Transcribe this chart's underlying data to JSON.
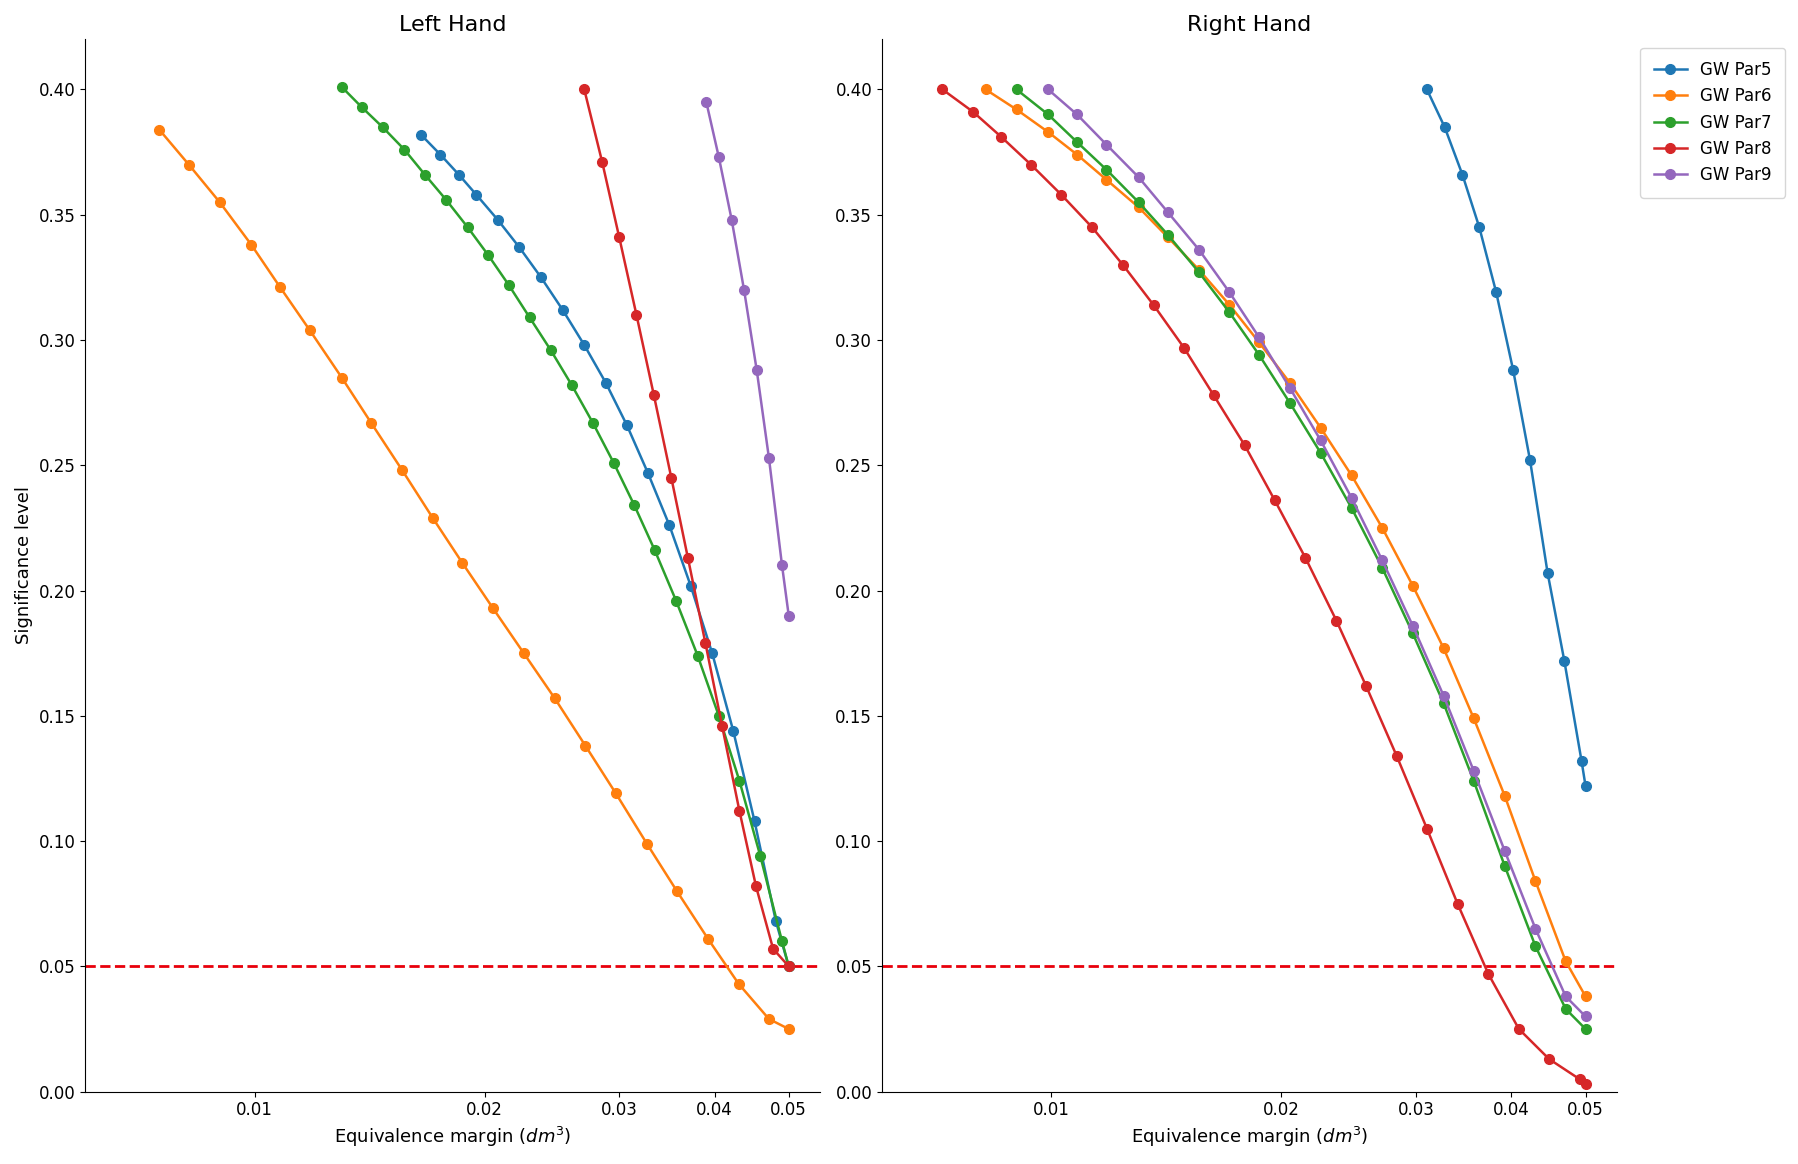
{
  "title_left": "Left Hand",
  "title_right": "Right Hand",
  "xlabel": "Equivalence margin ($dm^3$)",
  "ylabel": "Significance level",
  "ylim": [
    0.0,
    0.42
  ],
  "yticks": [
    0.0,
    0.05,
    0.1,
    0.15,
    0.2,
    0.25,
    0.3,
    0.35,
    0.4
  ],
  "hline_y": 0.05,
  "hline_color": "#e8000b",
  "series_labels": [
    "GW Par5",
    "GW Par6",
    "GW Par7",
    "GW Par8",
    "GW Par9"
  ],
  "series_colors": [
    "#1f77b4",
    "#ff7f0e",
    "#2ca02c",
    "#d62728",
    "#9467bd"
  ],
  "marker_size": 7,
  "linewidth": 1.8,
  "title_fontsize": 16,
  "label_fontsize": 13,
  "tick_fontsize": 12,
  "legend_fontsize": 12,
  "background_color": "#ffffff",
  "left_hand": {
    "GW_Par5": {
      "x": [
        0.0165,
        0.0175,
        0.0185,
        0.0195,
        0.0208,
        0.0222,
        0.0237,
        0.0253,
        0.027,
        0.0288,
        0.0307,
        0.0327,
        0.0349,
        0.0372,
        0.0397,
        0.0423,
        0.0451,
        0.0481,
        0.05
      ],
      "y": [
        0.382,
        0.374,
        0.366,
        0.358,
        0.348,
        0.337,
        0.325,
        0.312,
        0.298,
        0.283,
        0.266,
        0.247,
        0.226,
        0.202,
        0.175,
        0.144,
        0.108,
        0.068,
        0.05
      ]
    },
    "GW_Par6": {
      "x": [
        0.0075,
        0.0082,
        0.009,
        0.0099,
        0.0108,
        0.0118,
        0.013,
        0.0142,
        0.0156,
        0.0171,
        0.0187,
        0.0205,
        0.0225,
        0.0247,
        0.0271,
        0.0297,
        0.0326,
        0.0357,
        0.0392,
        0.043,
        0.0471,
        0.05
      ],
      "y": [
        0.384,
        0.37,
        0.355,
        0.338,
        0.321,
        0.304,
        0.285,
        0.267,
        0.248,
        0.229,
        0.211,
        0.193,
        0.175,
        0.157,
        0.138,
        0.119,
        0.099,
        0.08,
        0.061,
        0.043,
        0.029,
        0.025
      ]
    },
    "GW_Par7": {
      "x": [
        0.013,
        0.0138,
        0.0147,
        0.0157,
        0.0167,
        0.0178,
        0.019,
        0.0202,
        0.0215,
        0.0229,
        0.0244,
        0.026,
        0.0277,
        0.0295,
        0.0314,
        0.0334,
        0.0356,
        0.038,
        0.0405,
        0.0431,
        0.0459,
        0.049,
        0.05
      ],
      "y": [
        0.401,
        0.393,
        0.385,
        0.376,
        0.366,
        0.356,
        0.345,
        0.334,
        0.322,
        0.309,
        0.296,
        0.282,
        0.267,
        0.251,
        0.234,
        0.216,
        0.196,
        0.174,
        0.15,
        0.124,
        0.094,
        0.06,
        0.05
      ]
    },
    "GW_Par8": {
      "x": [
        0.027,
        0.0285,
        0.03,
        0.0316,
        0.0333,
        0.0351,
        0.0369,
        0.0389,
        0.0409,
        0.0431,
        0.0453,
        0.0477,
        0.05
      ],
      "y": [
        0.4,
        0.371,
        0.341,
        0.31,
        0.278,
        0.245,
        0.213,
        0.179,
        0.146,
        0.112,
        0.082,
        0.057,
        0.05
      ]
    },
    "GW_Par9": {
      "x": [
        0.039,
        0.0405,
        0.0421,
        0.0437,
        0.0454,
        0.0471,
        0.049,
        0.05
      ],
      "y": [
        0.395,
        0.373,
        0.348,
        0.32,
        0.288,
        0.253,
        0.21,
        0.19
      ]
    }
  },
  "right_hand": {
    "GW_Par5": {
      "x": [
        0.031,
        0.0327,
        0.0345,
        0.0363,
        0.0382,
        0.0402,
        0.0423,
        0.0446,
        0.0469,
        0.0494,
        0.05
      ],
      "y": [
        0.4,
        0.385,
        0.366,
        0.345,
        0.319,
        0.288,
        0.252,
        0.207,
        0.172,
        0.132,
        0.122
      ]
    },
    "GW_Par6": {
      "x": [
        0.0082,
        0.009,
        0.0099,
        0.0108,
        0.0118,
        0.013,
        0.0142,
        0.0156,
        0.0171,
        0.0187,
        0.0205,
        0.0225,
        0.0247,
        0.0271,
        0.0297,
        0.0326,
        0.0357,
        0.0392,
        0.043,
        0.0471,
        0.05
      ],
      "y": [
        0.4,
        0.392,
        0.383,
        0.374,
        0.364,
        0.353,
        0.341,
        0.328,
        0.314,
        0.299,
        0.283,
        0.265,
        0.246,
        0.225,
        0.202,
        0.177,
        0.149,
        0.118,
        0.084,
        0.052,
        0.038
      ]
    },
    "GW_Par7": {
      "x": [
        0.009,
        0.0099,
        0.0108,
        0.0118,
        0.013,
        0.0142,
        0.0156,
        0.0171,
        0.0187,
        0.0205,
        0.0225,
        0.0247,
        0.0271,
        0.0297,
        0.0326,
        0.0357,
        0.0392,
        0.043,
        0.0471,
        0.05
      ],
      "y": [
        0.4,
        0.39,
        0.379,
        0.368,
        0.355,
        0.342,
        0.327,
        0.311,
        0.294,
        0.275,
        0.255,
        0.233,
        0.209,
        0.183,
        0.155,
        0.124,
        0.09,
        0.058,
        0.033,
        0.025
      ]
    },
    "GW_Par8": {
      "x": [
        0.0072,
        0.0079,
        0.0086,
        0.0094,
        0.0103,
        0.0113,
        0.0124,
        0.0136,
        0.0149,
        0.0163,
        0.0179,
        0.0196,
        0.0215,
        0.0236,
        0.0258,
        0.0283,
        0.031,
        0.034,
        0.0373,
        0.0409,
        0.0448,
        0.0491,
        0.05
      ],
      "y": [
        0.4,
        0.391,
        0.381,
        0.37,
        0.358,
        0.345,
        0.33,
        0.314,
        0.297,
        0.278,
        0.258,
        0.236,
        0.213,
        0.188,
        0.162,
        0.134,
        0.105,
        0.075,
        0.047,
        0.025,
        0.013,
        0.005,
        0.003
      ]
    },
    "GW_Par9": {
      "x": [
        0.0099,
        0.0108,
        0.0118,
        0.013,
        0.0142,
        0.0156,
        0.0171,
        0.0187,
        0.0205,
        0.0225,
        0.0247,
        0.0271,
        0.0297,
        0.0326,
        0.0357,
        0.0392,
        0.043,
        0.0471,
        0.05
      ],
      "y": [
        0.4,
        0.39,
        0.378,
        0.365,
        0.351,
        0.336,
        0.319,
        0.301,
        0.281,
        0.26,
        0.237,
        0.212,
        0.186,
        0.158,
        0.128,
        0.096,
        0.065,
        0.038,
        0.03
      ]
    }
  }
}
